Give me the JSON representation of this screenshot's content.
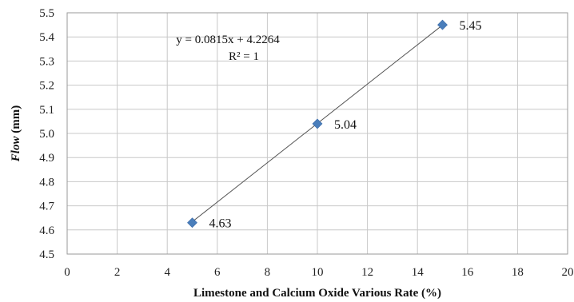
{
  "chart_data": {
    "type": "scatter",
    "x": [
      5,
      10,
      15
    ],
    "y": [
      4.63,
      5.04,
      5.45
    ],
    "data_labels": [
      "4.63",
      "5.04",
      "5.45"
    ],
    "xlabel": "Limestone and Calcium Oxide Various Rate (%)",
    "ylabel": {
      "main": "Flow",
      "unit": " (mm)"
    },
    "xlim": [
      0,
      20
    ],
    "ylim": [
      4.5,
      5.5
    ],
    "xticks": [
      "0",
      "2",
      "4",
      "6",
      "8",
      "10",
      "12",
      "14",
      "16",
      "18",
      "20"
    ],
    "yticks": [
      "4.5",
      "4.6",
      "4.7",
      "4.8",
      "4.9",
      "5.0",
      "5.1",
      "5.2",
      "5.3",
      "5.4",
      "5.5"
    ],
    "trendline": {
      "type": "linear",
      "slope": 0.0815,
      "intercept": 4.2264,
      "x_range": [
        5,
        15
      ]
    },
    "equation_text": "y = 0.0815x + 4.2264",
    "r2_text": "R² = 1",
    "grid": true,
    "legend": "none",
    "marker_color": "#4a7ebb",
    "trendline_color": "#555555",
    "grid_color": "#c8c8c8"
  }
}
